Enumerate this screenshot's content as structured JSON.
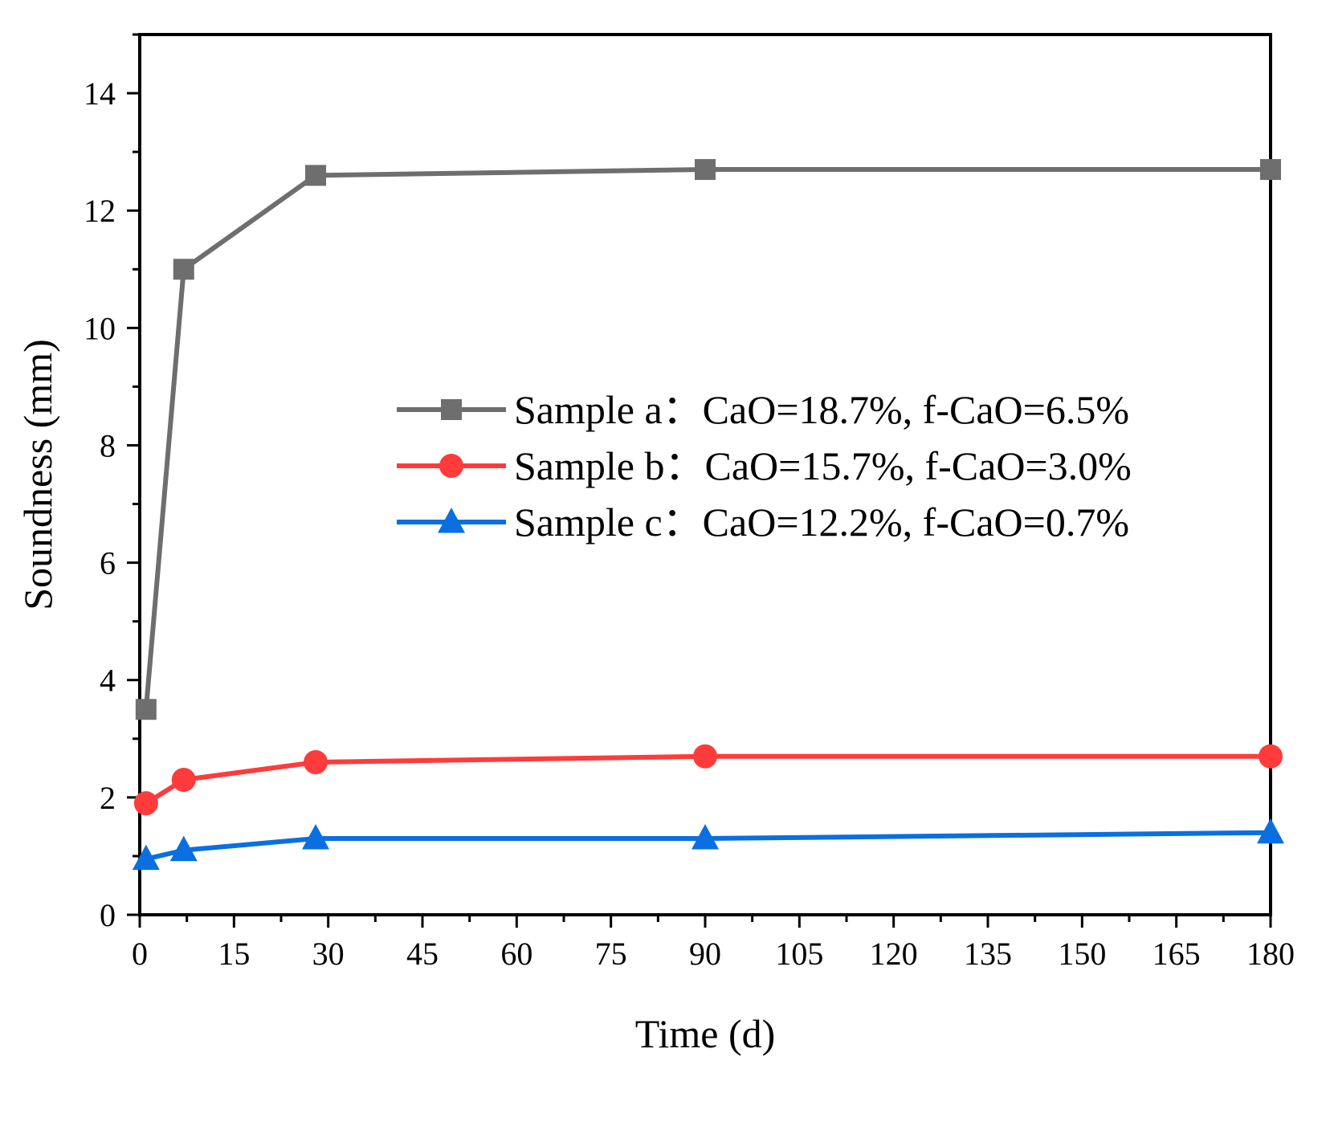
{
  "chart_data": {
    "type": "line",
    "title": "",
    "xlabel": "Time (d)",
    "ylabel": "Soundness (mm)",
    "xlim": [
      0,
      180
    ],
    "ylim": [
      0,
      15
    ],
    "xticks": [
      0,
      15,
      30,
      45,
      60,
      75,
      90,
      105,
      120,
      135,
      150,
      165,
      180
    ],
    "yticks": [
      0,
      2,
      4,
      6,
      8,
      10,
      12,
      14
    ],
    "grid": false,
    "legend_position": "center-right",
    "x": [
      1,
      7,
      28,
      90,
      180
    ],
    "series": [
      {
        "name": "Sample a：CaO=18.7%, f-CaO=6.5%",
        "marker": "square",
        "color": "#6e6e6e",
        "values": [
          3.5,
          11.0,
          12.6,
          12.7,
          12.7
        ]
      },
      {
        "name": "Sample b：CaO=15.7%, f-CaO=3.0%",
        "marker": "circle",
        "color": "#ff3b3b",
        "values": [
          1.9,
          2.3,
          2.6,
          2.7,
          2.7
        ]
      },
      {
        "name": "Sample c：CaO=12.2%, f-CaO=0.7%",
        "marker": "triangle",
        "color": "#0a6fe0",
        "values": [
          0.95,
          1.1,
          1.3,
          1.3,
          1.4
        ]
      }
    ]
  }
}
